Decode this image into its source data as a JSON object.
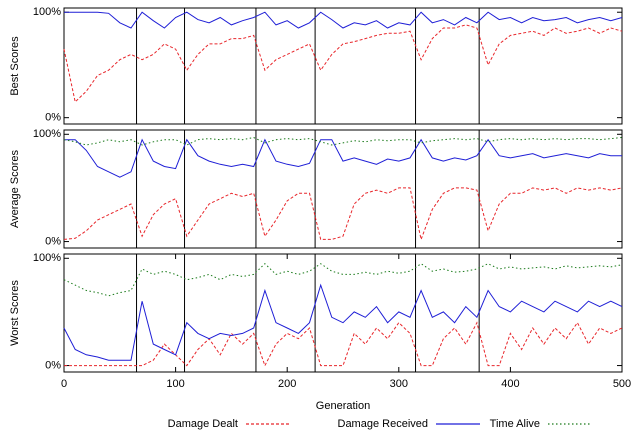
{
  "chart_data": [
    {
      "type": "line",
      "ylabel": "Best Scores",
      "x": [
        0,
        10,
        20,
        30,
        40,
        50,
        60,
        70,
        80,
        90,
        100,
        110,
        120,
        130,
        140,
        150,
        160,
        170,
        180,
        190,
        200,
        210,
        220,
        230,
        240,
        250,
        260,
        270,
        280,
        290,
        300,
        310,
        320,
        330,
        340,
        350,
        360,
        370,
        380,
        390,
        400,
        410,
        420,
        430,
        440,
        450,
        460,
        470,
        480,
        490,
        500
      ],
      "xlim": [
        0,
        500
      ],
      "ylim": [
        -6,
        104
      ],
      "yticks": [
        {
          "value": 0,
          "label": "0%"
        },
        {
          "value": 100,
          "label": "100%"
        }
      ],
      "boundaries": [
        65,
        108,
        172,
        225,
        315,
        372
      ],
      "series": [
        {
          "color": "#e8262b",
          "dash": "3,2",
          "values": [
            65,
            15,
            25,
            40,
            45,
            55,
            60,
            55,
            60,
            70,
            65,
            45,
            60,
            70,
            70,
            75,
            75,
            78,
            45,
            55,
            60,
            65,
            70,
            45,
            60,
            70,
            72,
            75,
            78,
            80,
            80,
            82,
            55,
            75,
            85,
            85,
            88,
            85,
            50,
            70,
            78,
            80,
            82,
            78,
            85,
            80,
            82,
            85,
            80,
            85,
            82
          ]
        },
        {
          "color": "#1f1fd6",
          "dash": "",
          "values": [
            100,
            100,
            100,
            100,
            99,
            90,
            85,
            100,
            92,
            85,
            95,
            100,
            93,
            90,
            95,
            88,
            92,
            95,
            100,
            88,
            92,
            85,
            90,
            100,
            93,
            85,
            90,
            88,
            92,
            85,
            90,
            88,
            100,
            90,
            93,
            88,
            95,
            90,
            100,
            93,
            95,
            90,
            95,
            92,
            93,
            95,
            90,
            93,
            95,
            92,
            95
          ]
        }
      ]
    },
    {
      "type": "line",
      "ylabel": "Average Scores",
      "x": [
        0,
        10,
        20,
        30,
        40,
        50,
        60,
        70,
        80,
        90,
        100,
        110,
        120,
        130,
        140,
        150,
        160,
        170,
        180,
        190,
        200,
        210,
        220,
        230,
        240,
        250,
        260,
        270,
        280,
        290,
        300,
        310,
        320,
        330,
        340,
        350,
        360,
        370,
        380,
        390,
        400,
        410,
        420,
        430,
        440,
        450,
        460,
        470,
        480,
        490,
        500
      ],
      "xlim": [
        0,
        500
      ],
      "ylim": [
        -6,
        104
      ],
      "yticks": [
        {
          "value": 0,
          "label": "0%"
        },
        {
          "value": 100,
          "label": "100%"
        }
      ],
      "boundaries": [
        65,
        108,
        172,
        225,
        315,
        372
      ],
      "series": [
        {
          "color": "#e8262b",
          "dash": "3,2",
          "values": [
            2,
            3,
            10,
            20,
            25,
            30,
            35,
            5,
            25,
            35,
            40,
            5,
            20,
            35,
            40,
            45,
            42,
            45,
            5,
            20,
            38,
            45,
            45,
            2,
            2,
            5,
            35,
            45,
            48,
            45,
            50,
            50,
            2,
            30,
            45,
            50,
            50,
            48,
            10,
            35,
            45,
            45,
            50,
            48,
            50,
            45,
            50,
            48,
            50,
            48,
            50
          ]
        },
        {
          "color": "#1f1fd6",
          "dash": "",
          "values": [
            95,
            95,
            85,
            70,
            65,
            60,
            65,
            95,
            75,
            70,
            68,
            95,
            80,
            75,
            72,
            70,
            72,
            70,
            95,
            75,
            72,
            70,
            73,
            95,
            95,
            75,
            78,
            75,
            72,
            77,
            75,
            78,
            95,
            78,
            75,
            78,
            76,
            80,
            95,
            80,
            78,
            80,
            82,
            78,
            80,
            82,
            80,
            78,
            82,
            80,
            80
          ]
        },
        {
          "color": "#1a7a1a",
          "dash": "1.5,2.5",
          "values": [
            95,
            93,
            90,
            92,
            95,
            93,
            95,
            90,
            93,
            95,
            95,
            90,
            95,
            96,
            95,
            96,
            95,
            97,
            92,
            95,
            96,
            95,
            96,
            93,
            90,
            92,
            94,
            93,
            95,
            94,
            95,
            95,
            92,
            94,
            95,
            96,
            95,
            96,
            93,
            95,
            96,
            95,
            96,
            95,
            96,
            95,
            96,
            96,
            95,
            96,
            97
          ]
        }
      ]
    },
    {
      "type": "line",
      "ylabel": "Worst Scores",
      "xlabel": "Generation",
      "x": [
        0,
        10,
        20,
        30,
        40,
        50,
        60,
        70,
        80,
        90,
        100,
        110,
        120,
        130,
        140,
        150,
        160,
        170,
        180,
        190,
        200,
        210,
        220,
        230,
        240,
        250,
        260,
        270,
        280,
        290,
        300,
        310,
        320,
        330,
        340,
        350,
        360,
        370,
        380,
        390,
        400,
        410,
        420,
        430,
        440,
        450,
        460,
        470,
        480,
        490,
        500
      ],
      "xlim": [
        0,
        500
      ],
      "xticks": [
        0,
        100,
        200,
        300,
        400,
        500
      ],
      "ylim": [
        -6,
        104
      ],
      "yticks": [
        {
          "value": 0,
          "label": "0%"
        },
        {
          "value": 100,
          "label": "100%"
        }
      ],
      "boundaries": [
        65,
        108,
        172,
        225,
        315,
        372
      ],
      "series": [
        {
          "name": "Damage Dealt",
          "color": "#e8262b",
          "dash": "3,2",
          "values": [
            0,
            0,
            0,
            0,
            0,
            0,
            0,
            0,
            5,
            20,
            10,
            0,
            15,
            25,
            10,
            30,
            20,
            30,
            0,
            20,
            30,
            25,
            35,
            0,
            0,
            0,
            30,
            20,
            35,
            25,
            40,
            30,
            0,
            0,
            25,
            35,
            20,
            40,
            0,
            0,
            30,
            15,
            35,
            20,
            35,
            25,
            40,
            20,
            35,
            30,
            35
          ]
        },
        {
          "name": "Damage Received",
          "color": "#1f1fd6",
          "dash": "",
          "values": [
            35,
            15,
            10,
            8,
            5,
            5,
            5,
            60,
            20,
            15,
            10,
            40,
            30,
            25,
            30,
            28,
            30,
            35,
            70,
            40,
            35,
            30,
            40,
            75,
            45,
            40,
            50,
            45,
            55,
            40,
            50,
            45,
            70,
            45,
            50,
            40,
            55,
            45,
            70,
            55,
            50,
            60,
            55,
            50,
            60,
            55,
            50,
            60,
            55,
            60,
            55
          ]
        },
        {
          "name": "Time Alive",
          "color": "#1a7a1a",
          "dash": "1.5,2.5",
          "values": [
            80,
            75,
            70,
            68,
            65,
            68,
            70,
            90,
            85,
            88,
            85,
            80,
            82,
            85,
            80,
            85,
            83,
            85,
            95,
            85,
            88,
            85,
            88,
            95,
            88,
            85,
            85,
            87,
            85,
            88,
            86,
            88,
            95,
            88,
            90,
            87,
            88,
            90,
            95,
            90,
            92,
            90,
            91,
            92,
            90,
            93,
            91,
            92,
            93,
            92,
            94
          ]
        }
      ]
    }
  ]
}
